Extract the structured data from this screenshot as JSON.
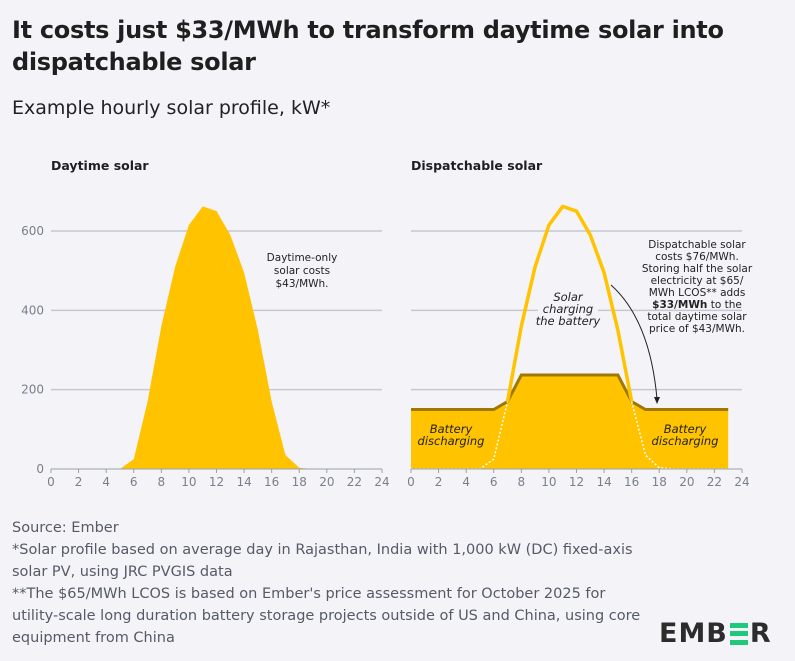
{
  "title": "It costs just $33/MWh to transform daytime solar into dispatchable solar",
  "subtitle": "Example hourly solar profile, kW*",
  "colors": {
    "solar": "#FFC300",
    "battery_line": "#A07800",
    "grid": "#c5c8d2",
    "logo_accent": "#1fc87a"
  },
  "chart_data": [
    {
      "type": "area",
      "title": "Daytime solar",
      "x": [
        0,
        1,
        2,
        3,
        4,
        5,
        6,
        7,
        8,
        9,
        10,
        11,
        12,
        13,
        14,
        15,
        16,
        17,
        18,
        19,
        20,
        21,
        22,
        23
      ],
      "series": [
        {
          "values": [
            0,
            0,
            0,
            0,
            0,
            0,
            25,
            170,
            360,
            510,
            615,
            662,
            650,
            590,
            495,
            350,
            170,
            35,
            3,
            0,
            0,
            0,
            0,
            0
          ]
        }
      ],
      "xlim": [
        0,
        24
      ],
      "ylim": [
        0,
        700
      ],
      "xticks": [
        "0",
        "2",
        "4",
        "6",
        "8",
        "10",
        "12",
        "14",
        "16",
        "18",
        "20",
        "22",
        "24"
      ],
      "yticks": [
        "0",
        "200",
        "400",
        "600"
      ],
      "grid": true,
      "annotations": [
        "Daytime-only",
        "solar costs",
        "$43/MWh."
      ]
    },
    {
      "type": "area",
      "title": "Dispatchable solar",
      "x": [
        0,
        1,
        2,
        3,
        4,
        5,
        6,
        7,
        8,
        9,
        10,
        11,
        12,
        13,
        14,
        15,
        16,
        17,
        18,
        19,
        20,
        21,
        22,
        23
      ],
      "series": [
        {
          "values": [
            150,
            150,
            150,
            150,
            150,
            150,
            150,
            170,
            237,
            237,
            237,
            237,
            237,
            237,
            237,
            237,
            170,
            150,
            150,
            150,
            150,
            150,
            150,
            150
          ]
        },
        {
          "values": [
            0,
            0,
            0,
            0,
            0,
            0,
            25,
            170,
            360,
            510,
            615,
            662,
            650,
            590,
            495,
            350,
            170,
            35,
            3,
            0,
            0,
            0,
            0,
            0
          ]
        }
      ],
      "xlim": [
        0,
        24
      ],
      "ylim": [
        0,
        700
      ],
      "xticks": [
        "0",
        "2",
        "4",
        "6",
        "8",
        "10",
        "12",
        "14",
        "16",
        "18",
        "20",
        "22",
        "24"
      ],
      "grid": true,
      "labels": {
        "charging": [
          "Solar",
          "charging",
          "the battery"
        ],
        "discharging": [
          "Battery",
          "discharging"
        ],
        "note": [
          "Dispatchable solar",
          "costs $76/MWh.",
          "Storing half the solar",
          "electricity at $65/",
          "MWh LCOS** adds",
          "$33/MWh",
          " to the",
          "total daytime solar",
          "price of $43/MWh."
        ]
      }
    }
  ],
  "footer": {
    "source": "Source: Ember",
    "note1": "*Solar profile based on average day in Rajasthan, India with 1,000 kW (DC) fixed-axis solar PV, using JRC PVGIS data",
    "note2": "**The $65/MWh LCOS is based on Ember's price assessment for October 2025 for utility-scale long duration battery storage projects outside of US and China, using core equipment from China"
  },
  "logo": {
    "pre": "EMB",
    "post": "R"
  }
}
